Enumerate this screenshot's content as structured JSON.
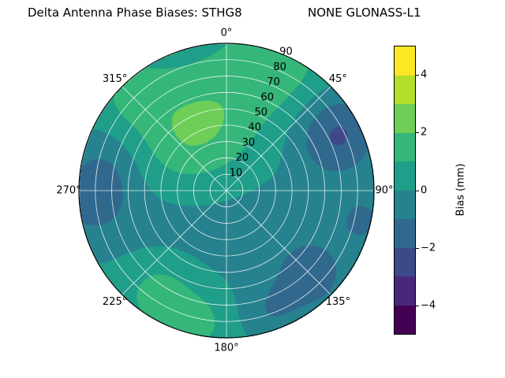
{
  "chart_data": {
    "type": "polar_filled_contour",
    "title": "Delta Antenna Phase Biases: STHG8",
    "title_right": "NONE GLONASS-L1",
    "azimuth_tick_values": [
      0,
      45,
      90,
      135,
      180,
      225,
      270,
      315
    ],
    "azimuth_tick_labels": [
      "0°",
      "45°",
      "90°",
      "135°",
      "180°",
      "225°",
      "270°",
      "315°"
    ],
    "radial_tick_values": [
      10,
      20,
      30,
      40,
      50,
      60,
      70,
      80,
      90
    ],
    "radial_tick_labels": [
      "10",
      "20",
      "30",
      "40",
      "50",
      "60",
      "70",
      "80",
      "90"
    ],
    "radial_label_angle_deg": 22.5,
    "radial_max": 90,
    "levels": [
      -5,
      -4,
      -3,
      -2,
      -1,
      0,
      1,
      2,
      3,
      4,
      5
    ],
    "colorbar": {
      "label": "Bias (mm)",
      "min": -5,
      "max": 5,
      "tick_values": [
        -4,
        -2,
        0,
        2,
        4
      ],
      "tick_labels": [
        "−4",
        "−2",
        "0",
        "2",
        "4"
      ],
      "band_colors": [
        "#440154",
        "#482878",
        "#3e4989",
        "#31688e",
        "#26828e",
        "#1f9e89",
        "#35b779",
        "#6ece58",
        "#b5de2b",
        "#fde725"
      ]
    },
    "grid": {
      "color": "rgba(255,255,255,0.85)",
      "ring_step": 10,
      "spoke_step_deg": 45
    },
    "field": {
      "base": 0.4,
      "blobs": [
        [
          345,
          0.5,
          1.5,
          0.27
        ],
        [
          310,
          0.45,
          1.0,
          0.25
        ],
        [
          20,
          0.9,
          1.3,
          0.22
        ],
        [
          316,
          0.9,
          0.9,
          0.16
        ],
        [
          214,
          0.82,
          1.4,
          0.18
        ],
        [
          192,
          0.9,
          1.0,
          0.15
        ],
        [
          266,
          0.93,
          -1.5,
          0.16
        ],
        [
          282,
          0.85,
          -0.9,
          0.18
        ],
        [
          63,
          0.85,
          -2.4,
          0.2
        ],
        [
          102,
          0.95,
          -1.3,
          0.13
        ],
        [
          135,
          0.82,
          -1.5,
          0.18
        ],
        [
          160,
          0.88,
          -1.0,
          0.15
        ],
        [
          250,
          0.5,
          -0.8,
          0.45
        ],
        [
          120,
          0.55,
          -0.6,
          0.4
        ]
      ]
    }
  }
}
